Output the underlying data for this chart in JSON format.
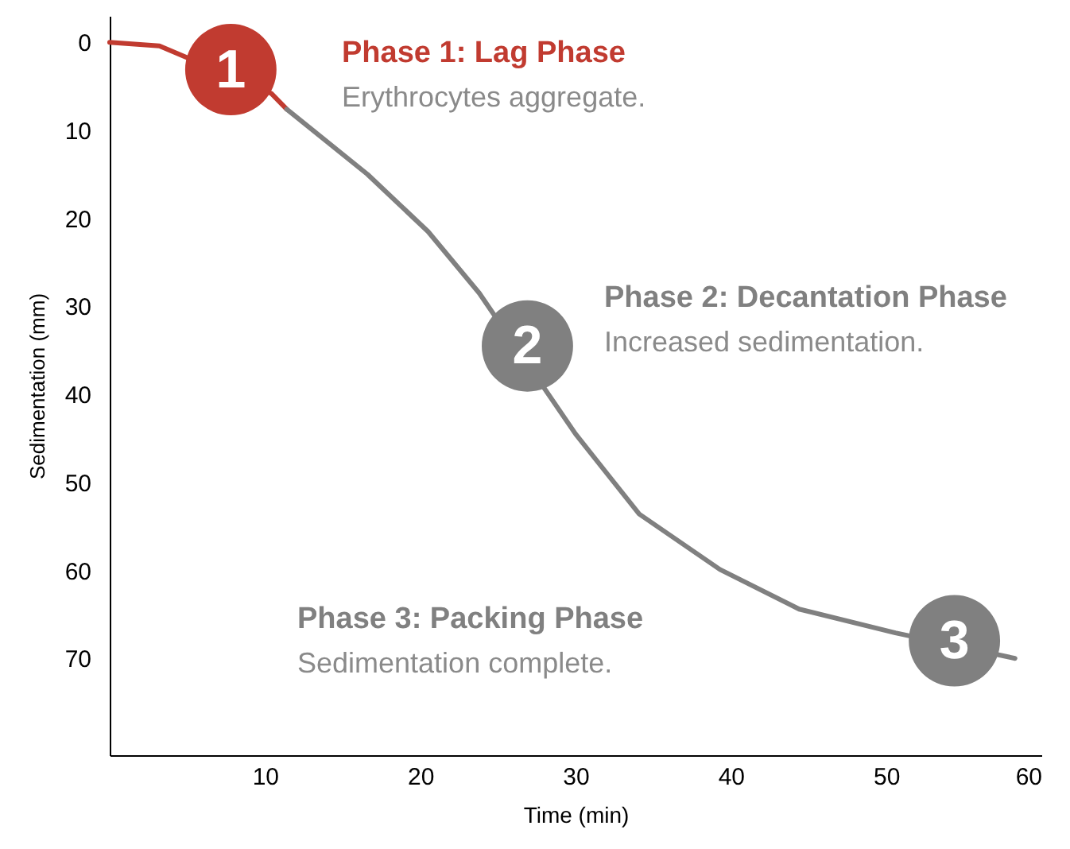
{
  "chart_data": {
    "type": "line",
    "xlabel": "Time (min)",
    "ylabel": "Sedimentation (mm)",
    "xlim": [
      0,
      60
    ],
    "xticks": [
      10,
      20,
      30,
      40,
      50,
      60
    ],
    "ylim": [
      81,
      -3
    ],
    "yticks": [
      0,
      10,
      20,
      30,
      40,
      50,
      60,
      70
    ],
    "grid": false,
    "marker": "none",
    "line_style": "solid",
    "series": [
      {
        "color": "#c13b30",
        "x": [
          0,
          3.2,
          10.4,
          11.4
        ],
        "values": [
          0,
          0.4,
          5.8,
          7.6
        ]
      },
      {
        "color": "#808080",
        "x": [
          11.4,
          16.6,
          20.5,
          23.8,
          30,
          34.1,
          39.3,
          44.4,
          50.6,
          58.3
        ],
        "values": [
          7.6,
          15,
          21.5,
          28.5,
          44.5,
          53.6,
          59.9,
          64.4,
          67.1,
          70
        ]
      }
    ],
    "annotations": [
      {
        "text": "1",
        "x": 7.8,
        "y": 3.1
      },
      {
        "text": "2",
        "x": 26.9,
        "y": 34.5
      },
      {
        "text": "3",
        "x": 54.4,
        "y": 68
      },
      "Phase 1: Lag Phase",
      "Erythrocytes aggregate.",
      "Phase 2: Decantation Phase",
      "Increased sedimentation.",
      "Phase 3: Packing Phase",
      "Sedimentation complete."
    ]
  }
}
